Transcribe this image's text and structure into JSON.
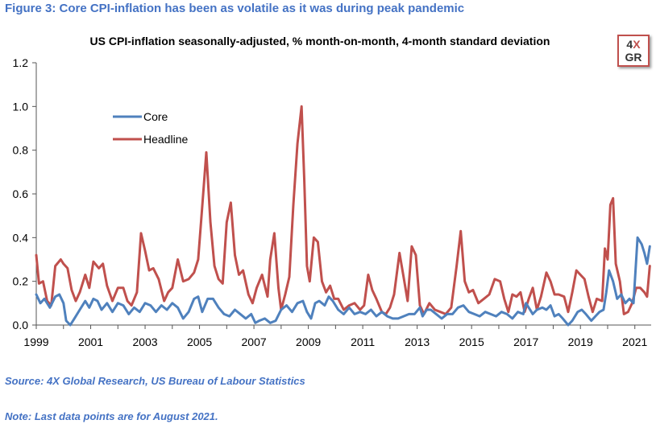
{
  "figure_title": "Figure 3: Core CPI-inflation has been as volatile as it was during peak pandemic",
  "source": "Source: 4X Global Research, US Bureau of Labour Statistics",
  "note": "Note: Last data points are for August 2021.",
  "logo": {
    "line1_a": "4",
    "line1_b": "X",
    "line2_a": "G",
    "line2_b": "R"
  },
  "colors": {
    "core": "#4f81bd",
    "headline": "#c0504d",
    "title": "#4472c4"
  },
  "chart_data": {
    "type": "line",
    "title": "US CPI-inflation seasonally-adjusted, % month-on-month, 4-month standard deviation",
    "xlabel": "",
    "ylabel": "",
    "xlim": [
      1999.0,
      2021.6
    ],
    "ylim": [
      0.0,
      1.2
    ],
    "y_ticks": [
      "0.0",
      "0.2",
      "0.4",
      "0.6",
      "0.8",
      "1.0",
      "1.2"
    ],
    "x_ticks": [
      "1999",
      "2001",
      "2003",
      "2005",
      "2007",
      "2009",
      "2011",
      "2013",
      "2015",
      "2017",
      "2019",
      "2021"
    ],
    "legend_position": "top-left",
    "grid": false,
    "series": [
      {
        "name": "Core",
        "points": [
          [
            1999.0,
            0.14
          ],
          [
            1999.15,
            0.1
          ],
          [
            1999.3,
            0.12
          ],
          [
            1999.5,
            0.08
          ],
          [
            1999.7,
            0.13
          ],
          [
            1999.85,
            0.14
          ],
          [
            2000.0,
            0.1
          ],
          [
            2000.1,
            0.02
          ],
          [
            2000.25,
            0.0
          ],
          [
            2000.4,
            0.03
          ],
          [
            2000.6,
            0.07
          ],
          [
            2000.8,
            0.11
          ],
          [
            2000.95,
            0.08
          ],
          [
            2001.1,
            0.12
          ],
          [
            2001.25,
            0.11
          ],
          [
            2001.4,
            0.07
          ],
          [
            2001.6,
            0.1
          ],
          [
            2001.8,
            0.06
          ],
          [
            2002.0,
            0.1
          ],
          [
            2002.2,
            0.09
          ],
          [
            2002.4,
            0.05
          ],
          [
            2002.6,
            0.08
          ],
          [
            2002.8,
            0.06
          ],
          [
            2003.0,
            0.1
          ],
          [
            2003.2,
            0.09
          ],
          [
            2003.4,
            0.06
          ],
          [
            2003.6,
            0.09
          ],
          [
            2003.8,
            0.07
          ],
          [
            2004.0,
            0.1
          ],
          [
            2004.2,
            0.08
          ],
          [
            2004.4,
            0.03
          ],
          [
            2004.6,
            0.06
          ],
          [
            2004.8,
            0.12
          ],
          [
            2004.95,
            0.13
          ],
          [
            2005.1,
            0.06
          ],
          [
            2005.3,
            0.12
          ],
          [
            2005.5,
            0.12
          ],
          [
            2005.7,
            0.08
          ],
          [
            2005.9,
            0.05
          ],
          [
            2006.1,
            0.04
          ],
          [
            2006.3,
            0.07
          ],
          [
            2006.5,
            0.05
          ],
          [
            2006.7,
            0.03
          ],
          [
            2006.9,
            0.05
          ],
          [
            2007.05,
            0.01
          ],
          [
            2007.2,
            0.02
          ],
          [
            2007.4,
            0.03
          ],
          [
            2007.6,
            0.01
          ],
          [
            2007.8,
            0.02
          ],
          [
            2008.0,
            0.07
          ],
          [
            2008.2,
            0.09
          ],
          [
            2008.4,
            0.06
          ],
          [
            2008.6,
            0.1
          ],
          [
            2008.8,
            0.11
          ],
          [
            2008.95,
            0.06
          ],
          [
            2009.1,
            0.03
          ],
          [
            2009.25,
            0.1
          ],
          [
            2009.4,
            0.11
          ],
          [
            2009.6,
            0.09
          ],
          [
            2009.75,
            0.13
          ],
          [
            2009.9,
            0.11
          ],
          [
            2010.1,
            0.07
          ],
          [
            2010.3,
            0.05
          ],
          [
            2010.5,
            0.08
          ],
          [
            2010.7,
            0.05
          ],
          [
            2010.9,
            0.06
          ],
          [
            2011.1,
            0.05
          ],
          [
            2011.3,
            0.07
          ],
          [
            2011.5,
            0.04
          ],
          [
            2011.7,
            0.06
          ],
          [
            2011.9,
            0.04
          ],
          [
            2012.1,
            0.03
          ],
          [
            2012.3,
            0.03
          ],
          [
            2012.5,
            0.04
          ],
          [
            2012.7,
            0.05
          ],
          [
            2012.9,
            0.05
          ],
          [
            2013.1,
            0.08
          ],
          [
            2013.2,
            0.04
          ],
          [
            2013.35,
            0.07
          ],
          [
            2013.5,
            0.07
          ],
          [
            2013.7,
            0.05
          ],
          [
            2013.9,
            0.03
          ],
          [
            2014.1,
            0.05
          ],
          [
            2014.3,
            0.05
          ],
          [
            2014.5,
            0.08
          ],
          [
            2014.7,
            0.09
          ],
          [
            2014.9,
            0.06
          ],
          [
            2015.1,
            0.05
          ],
          [
            2015.3,
            0.04
          ],
          [
            2015.5,
            0.06
          ],
          [
            2015.7,
            0.05
          ],
          [
            2015.9,
            0.04
          ],
          [
            2016.1,
            0.06
          ],
          [
            2016.3,
            0.05
          ],
          [
            2016.5,
            0.03
          ],
          [
            2016.7,
            0.06
          ],
          [
            2016.9,
            0.05
          ],
          [
            2017.0,
            0.1
          ],
          [
            2017.1,
            0.08
          ],
          [
            2017.25,
            0.05
          ],
          [
            2017.4,
            0.07
          ],
          [
            2017.6,
            0.08
          ],
          [
            2017.75,
            0.07
          ],
          [
            2017.9,
            0.09
          ],
          [
            2018.05,
            0.04
          ],
          [
            2018.2,
            0.05
          ],
          [
            2018.35,
            0.03
          ],
          [
            2018.55,
            0.0
          ],
          [
            2018.7,
            0.02
          ],
          [
            2018.9,
            0.06
          ],
          [
            2019.05,
            0.07
          ],
          [
            2019.2,
            0.05
          ],
          [
            2019.4,
            0.02
          ],
          [
            2019.55,
            0.04
          ],
          [
            2019.7,
            0.06
          ],
          [
            2019.85,
            0.07
          ],
          [
            2019.95,
            0.15
          ],
          [
            2020.05,
            0.25
          ],
          [
            2020.2,
            0.2
          ],
          [
            2020.35,
            0.12
          ],
          [
            2020.5,
            0.14
          ],
          [
            2020.65,
            0.1
          ],
          [
            2020.8,
            0.12
          ],
          [
            2020.95,
            0.1
          ],
          [
            2021.1,
            0.4
          ],
          [
            2021.25,
            0.37
          ],
          [
            2021.35,
            0.33
          ],
          [
            2021.45,
            0.28
          ],
          [
            2021.55,
            0.36
          ]
        ]
      },
      {
        "name": "Headline",
        "points": [
          [
            1999.0,
            0.32
          ],
          [
            1999.1,
            0.19
          ],
          [
            1999.25,
            0.2
          ],
          [
            1999.4,
            0.11
          ],
          [
            1999.55,
            0.09
          ],
          [
            1999.7,
            0.27
          ],
          [
            1999.9,
            0.3
          ],
          [
            2000.0,
            0.28
          ],
          [
            2000.15,
            0.26
          ],
          [
            2000.3,
            0.16
          ],
          [
            2000.45,
            0.11
          ],
          [
            2000.6,
            0.15
          ],
          [
            2000.8,
            0.23
          ],
          [
            2000.95,
            0.17
          ],
          [
            2001.1,
            0.29
          ],
          [
            2001.3,
            0.26
          ],
          [
            2001.45,
            0.28
          ],
          [
            2001.6,
            0.18
          ],
          [
            2001.8,
            0.11
          ],
          [
            2002.0,
            0.17
          ],
          [
            2002.2,
            0.17
          ],
          [
            2002.35,
            0.11
          ],
          [
            2002.5,
            0.09
          ],
          [
            2002.7,
            0.15
          ],
          [
            2002.85,
            0.42
          ],
          [
            2003.0,
            0.34
          ],
          [
            2003.15,
            0.25
          ],
          [
            2003.3,
            0.26
          ],
          [
            2003.5,
            0.21
          ],
          [
            2003.7,
            0.11
          ],
          [
            2003.85,
            0.15
          ],
          [
            2004.0,
            0.17
          ],
          [
            2004.2,
            0.3
          ],
          [
            2004.4,
            0.2
          ],
          [
            2004.6,
            0.21
          ],
          [
            2004.8,
            0.24
          ],
          [
            2004.95,
            0.3
          ],
          [
            2005.1,
            0.54
          ],
          [
            2005.25,
            0.79
          ],
          [
            2005.4,
            0.47
          ],
          [
            2005.55,
            0.27
          ],
          [
            2005.7,
            0.21
          ],
          [
            2005.85,
            0.19
          ],
          [
            2006.0,
            0.47
          ],
          [
            2006.15,
            0.56
          ],
          [
            2006.3,
            0.32
          ],
          [
            2006.45,
            0.23
          ],
          [
            2006.6,
            0.25
          ],
          [
            2006.8,
            0.14
          ],
          [
            2006.95,
            0.1
          ],
          [
            2007.1,
            0.17
          ],
          [
            2007.3,
            0.23
          ],
          [
            2007.5,
            0.13
          ],
          [
            2007.6,
            0.3
          ],
          [
            2007.75,
            0.42
          ],
          [
            2007.9,
            0.17
          ],
          [
            2008.0,
            0.07
          ],
          [
            2008.15,
            0.14
          ],
          [
            2008.3,
            0.22
          ],
          [
            2008.45,
            0.55
          ],
          [
            2008.6,
            0.83
          ],
          [
            2008.75,
            1.0
          ],
          [
            2008.85,
            0.67
          ],
          [
            2008.95,
            0.27
          ],
          [
            2009.05,
            0.2
          ],
          [
            2009.2,
            0.4
          ],
          [
            2009.35,
            0.38
          ],
          [
            2009.5,
            0.2
          ],
          [
            2009.65,
            0.15
          ],
          [
            2009.8,
            0.18
          ],
          [
            2009.95,
            0.12
          ],
          [
            2010.1,
            0.12
          ],
          [
            2010.3,
            0.07
          ],
          [
            2010.5,
            0.09
          ],
          [
            2010.7,
            0.1
          ],
          [
            2010.9,
            0.07
          ],
          [
            2011.05,
            0.09
          ],
          [
            2011.2,
            0.23
          ],
          [
            2011.35,
            0.16
          ],
          [
            2011.5,
            0.12
          ],
          [
            2011.7,
            0.06
          ],
          [
            2011.85,
            0.05
          ],
          [
            2012.0,
            0.08
          ],
          [
            2012.15,
            0.14
          ],
          [
            2012.35,
            0.33
          ],
          [
            2012.5,
            0.22
          ],
          [
            2012.65,
            0.11
          ],
          [
            2012.8,
            0.36
          ],
          [
            2012.95,
            0.32
          ],
          [
            2013.1,
            0.09
          ],
          [
            2013.25,
            0.05
          ],
          [
            2013.45,
            0.1
          ],
          [
            2013.65,
            0.07
          ],
          [
            2013.85,
            0.06
          ],
          [
            2014.05,
            0.05
          ],
          [
            2014.25,
            0.08
          ],
          [
            2014.45,
            0.27
          ],
          [
            2014.6,
            0.43
          ],
          [
            2014.75,
            0.2
          ],
          [
            2014.9,
            0.15
          ],
          [
            2015.05,
            0.16
          ],
          [
            2015.25,
            0.1
          ],
          [
            2015.45,
            0.12
          ],
          [
            2015.65,
            0.14
          ],
          [
            2015.85,
            0.21
          ],
          [
            2016.05,
            0.2
          ],
          [
            2016.2,
            0.12
          ],
          [
            2016.35,
            0.06
          ],
          [
            2016.5,
            0.14
          ],
          [
            2016.65,
            0.13
          ],
          [
            2016.8,
            0.15
          ],
          [
            2016.95,
            0.06
          ],
          [
            2017.1,
            0.12
          ],
          [
            2017.25,
            0.17
          ],
          [
            2017.4,
            0.07
          ],
          [
            2017.55,
            0.13
          ],
          [
            2017.75,
            0.24
          ],
          [
            2017.9,
            0.2
          ],
          [
            2018.05,
            0.14
          ],
          [
            2018.2,
            0.14
          ],
          [
            2018.4,
            0.13
          ],
          [
            2018.55,
            0.06
          ],
          [
            2018.7,
            0.15
          ],
          [
            2018.85,
            0.25
          ],
          [
            2019.0,
            0.23
          ],
          [
            2019.15,
            0.21
          ],
          [
            2019.3,
            0.13
          ],
          [
            2019.45,
            0.06
          ],
          [
            2019.6,
            0.12
          ],
          [
            2019.8,
            0.11
          ],
          [
            2019.9,
            0.35
          ],
          [
            2020.0,
            0.3
          ],
          [
            2020.1,
            0.55
          ],
          [
            2020.2,
            0.58
          ],
          [
            2020.3,
            0.28
          ],
          [
            2020.45,
            0.2
          ],
          [
            2020.6,
            0.05
          ],
          [
            2020.75,
            0.06
          ],
          [
            2020.9,
            0.1
          ],
          [
            2021.05,
            0.17
          ],
          [
            2021.2,
            0.17
          ],
          [
            2021.35,
            0.15
          ],
          [
            2021.45,
            0.13
          ],
          [
            2021.55,
            0.27
          ]
        ]
      }
    ]
  }
}
